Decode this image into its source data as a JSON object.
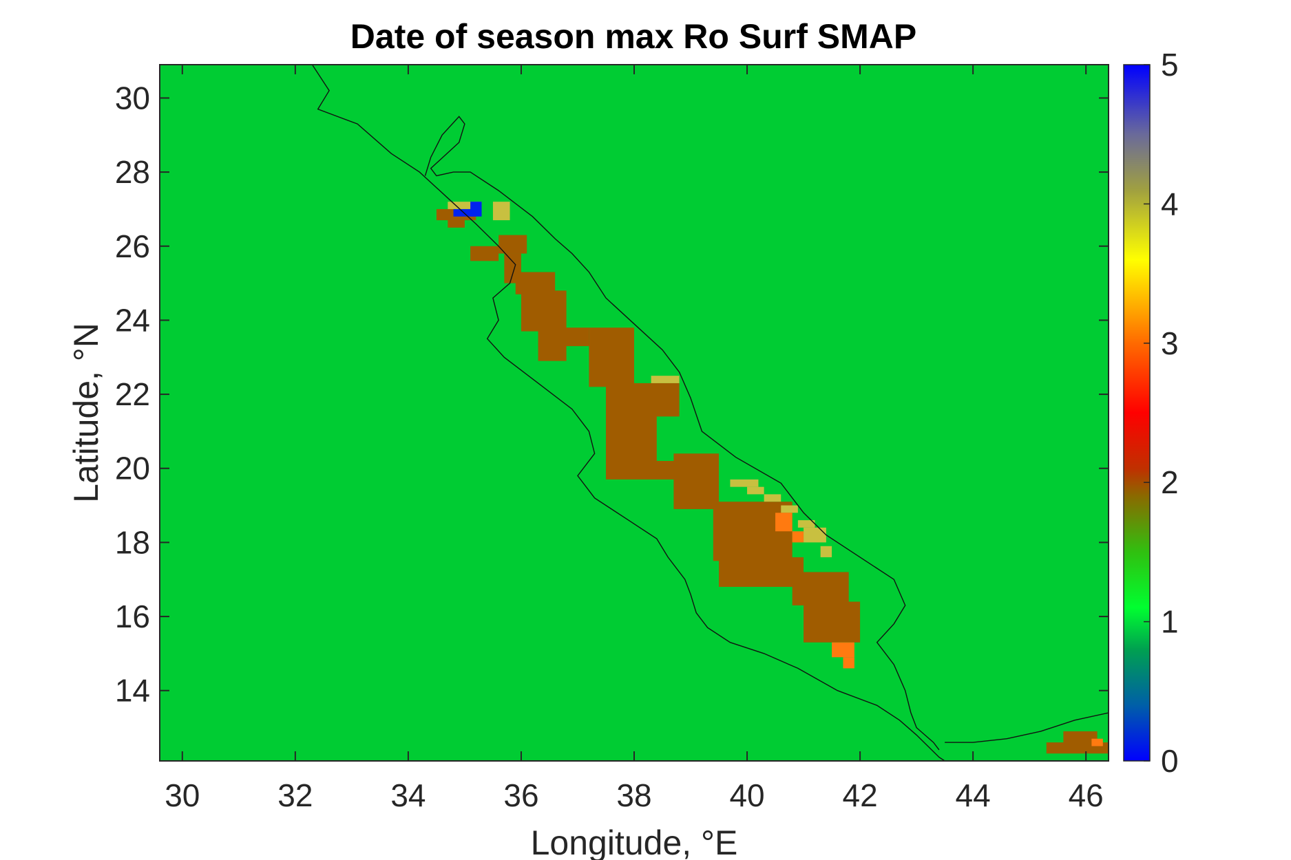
{
  "chart_data": {
    "type": "heatmap",
    "title": "Date of season max Ro Surf SMAP",
    "xlabel": "Longitude, °E",
    "ylabel": "Latitude, °N",
    "xlim": [
      29.6,
      46.4
    ],
    "ylim": [
      12.1,
      30.9
    ],
    "xticks": [
      30,
      32,
      34,
      36,
      38,
      40,
      42,
      44,
      46
    ],
    "xtick_labels": [
      "30",
      "32",
      "34",
      "36",
      "38",
      "40",
      "42",
      "44",
      "46"
    ],
    "yticks": [
      14,
      16,
      18,
      20,
      22,
      24,
      26,
      28,
      30
    ],
    "ytick_labels": [
      "14",
      "16",
      "18",
      "20",
      "22",
      "24",
      "26",
      "28",
      "30"
    ],
    "colorbar": {
      "range": [
        0,
        5
      ],
      "ticks": [
        0,
        1,
        2,
        3,
        4,
        5
      ],
      "tick_labels": [
        "0",
        "1",
        "2",
        "3",
        "4",
        "5"
      ]
    },
    "background_value": 1,
    "cells": [
      {
        "lon": [
          35.6,
          36.1
        ],
        "lat": [
          25.8,
          26.3
        ],
        "value": 2
      },
      {
        "lon": [
          35.1,
          35.6
        ],
        "lat": [
          25.6,
          26.0
        ],
        "value": 2
      },
      {
        "lon": [
          35.7,
          36.0
        ],
        "lat": [
          25.0,
          25.8
        ],
        "value": 2
      },
      {
        "lon": [
          35.9,
          36.6
        ],
        "lat": [
          24.7,
          25.3
        ],
        "value": 2
      },
      {
        "lon": [
          36.0,
          36.8
        ],
        "lat": [
          23.7,
          24.8
        ],
        "value": 2
      },
      {
        "lon": [
          36.3,
          37.2
        ],
        "lat": [
          23.3,
          23.8
        ],
        "value": 2
      },
      {
        "lon": [
          36.3,
          36.8
        ],
        "lat": [
          22.9,
          23.4
        ],
        "value": 2
      },
      {
        "lon": [
          37.2,
          38.0
        ],
        "lat": [
          22.2,
          23.8
        ],
        "value": 2
      },
      {
        "lon": [
          37.5,
          38.4
        ],
        "lat": [
          20.1,
          22.3
        ],
        "value": 2
      },
      {
        "lon": [
          37.5,
          38.9
        ],
        "lat": [
          19.7,
          20.2
        ],
        "value": 2
      },
      {
        "lon": [
          38.3,
          38.8
        ],
        "lat": [
          21.4,
          22.3
        ],
        "value": 2
      },
      {
        "lon": [
          38.7,
          39.5
        ],
        "lat": [
          18.9,
          20.4
        ],
        "value": 2
      },
      {
        "lon": [
          39.4,
          40.8
        ],
        "lat": [
          17.5,
          19.1
        ],
        "value": 2
      },
      {
        "lon": [
          39.5,
          41.0
        ],
        "lat": [
          16.8,
          17.6
        ],
        "value": 2
      },
      {
        "lon": [
          40.8,
          41.8
        ],
        "lat": [
          16.3,
          17.2
        ],
        "value": 2
      },
      {
        "lon": [
          41.0,
          42.0
        ],
        "lat": [
          15.3,
          16.4
        ],
        "value": 2
      },
      {
        "lon": [
          45.3,
          46.4
        ],
        "lat": [
          12.3,
          12.6
        ],
        "value": 2
      },
      {
        "lon": [
          45.6,
          46.2
        ],
        "lat": [
          12.5,
          12.9
        ],
        "value": 2
      },
      {
        "lon": [
          34.5,
          35.2
        ],
        "lat": [
          26.7,
          27.0
        ],
        "value": 2
      },
      {
        "lon": [
          34.7,
          35.0
        ],
        "lat": [
          26.5,
          26.8
        ],
        "value": 2
      },
      {
        "lon": [
          38.3,
          38.8
        ],
        "lat": [
          22.3,
          22.5
        ],
        "value": 3.9
      },
      {
        "lon": [
          39.7,
          40.2
        ],
        "lat": [
          19.5,
          19.7
        ],
        "value": 3.9
      },
      {
        "lon": [
          40.0,
          40.3
        ],
        "lat": [
          19.3,
          19.5
        ],
        "value": 3.9
      },
      {
        "lon": [
          40.3,
          40.6
        ],
        "lat": [
          19.1,
          19.3
        ],
        "value": 3.9
      },
      {
        "lon": [
          40.6,
          40.9
        ],
        "lat": [
          18.8,
          19.0
        ],
        "value": 3.9
      },
      {
        "lon": [
          40.9,
          41.2
        ],
        "lat": [
          18.4,
          18.6
        ],
        "value": 3.9
      },
      {
        "lon": [
          41.0,
          41.4
        ],
        "lat": [
          18.0,
          18.4
        ],
        "value": 3.9
      },
      {
        "lon": [
          41.3,
          41.5
        ],
        "lat": [
          17.6,
          17.9
        ],
        "value": 3.9
      },
      {
        "lon": [
          34.7,
          35.3
        ],
        "lat": [
          27.0,
          27.2
        ],
        "value": 3.9
      },
      {
        "lon": [
          35.5,
          35.8
        ],
        "lat": [
          26.7,
          27.2
        ],
        "value": 3.9
      },
      {
        "lon": [
          40.5,
          40.8
        ],
        "lat": [
          18.3,
          18.8
        ],
        "value": 3
      },
      {
        "lon": [
          40.8,
          41.0
        ],
        "lat": [
          18.0,
          18.3
        ],
        "value": 3
      },
      {
        "lon": [
          41.5,
          41.9
        ],
        "lat": [
          14.9,
          15.3
        ],
        "value": 3
      },
      {
        "lon": [
          41.7,
          41.9
        ],
        "lat": [
          14.6,
          14.9
        ],
        "value": 3
      },
      {
        "lon": [
          46.1,
          46.3
        ],
        "lat": [
          12.5,
          12.7
        ],
        "value": 3
      },
      {
        "lon": [
          34.8,
          35.2
        ],
        "lat": [
          26.8,
          27.0
        ],
        "value": 5
      },
      {
        "lon": [
          35.1,
          35.3
        ],
        "lat": [
          26.8,
          27.2
        ],
        "value": 5
      }
    ],
    "coastlines": [
      {
        "name": "western-shore",
        "points": [
          [
            32.3,
            30.9
          ],
          [
            32.6,
            30.2
          ],
          [
            32.4,
            29.7
          ],
          [
            33.1,
            29.3
          ],
          [
            33.7,
            28.5
          ],
          [
            34.2,
            28.0
          ],
          [
            34.7,
            27.3
          ],
          [
            35.2,
            26.6
          ],
          [
            35.6,
            26.0
          ],
          [
            35.9,
            25.5
          ],
          [
            35.8,
            25.0
          ],
          [
            35.5,
            24.6
          ],
          [
            35.6,
            24.0
          ],
          [
            35.4,
            23.5
          ],
          [
            35.7,
            23.0
          ],
          [
            36.3,
            22.3
          ],
          [
            36.9,
            21.6
          ],
          [
            37.2,
            21.0
          ],
          [
            37.3,
            20.4
          ],
          [
            37.0,
            19.8
          ],
          [
            37.3,
            19.2
          ],
          [
            37.9,
            18.6
          ],
          [
            38.4,
            18.1
          ],
          [
            38.6,
            17.6
          ],
          [
            38.9,
            17.0
          ],
          [
            39.0,
            16.6
          ],
          [
            39.1,
            16.1
          ],
          [
            39.3,
            15.7
          ],
          [
            39.7,
            15.3
          ],
          [
            40.3,
            15.0
          ],
          [
            40.9,
            14.6
          ],
          [
            41.6,
            14.0
          ],
          [
            42.3,
            13.6
          ],
          [
            42.7,
            13.2
          ],
          [
            43.0,
            12.8
          ],
          [
            43.4,
            12.2
          ],
          [
            43.5,
            12.1
          ]
        ]
      },
      {
        "name": "eastern-shore",
        "points": [
          [
            43.4,
            12.4
          ],
          [
            43.3,
            12.6
          ],
          [
            43.0,
            13.0
          ],
          [
            42.9,
            13.4
          ],
          [
            42.8,
            14.0
          ],
          [
            42.6,
            14.7
          ],
          [
            42.3,
            15.3
          ],
          [
            42.6,
            15.8
          ],
          [
            42.8,
            16.3
          ],
          [
            42.6,
            17.0
          ],
          [
            42.0,
            17.6
          ],
          [
            41.4,
            18.2
          ],
          [
            41.0,
            18.8
          ],
          [
            40.6,
            19.6
          ],
          [
            39.8,
            20.3
          ],
          [
            39.2,
            21.0
          ],
          [
            39.0,
            21.9
          ],
          [
            38.8,
            22.6
          ],
          [
            38.5,
            23.2
          ],
          [
            38.0,
            23.9
          ],
          [
            37.5,
            24.6
          ],
          [
            37.2,
            25.3
          ],
          [
            36.9,
            25.8
          ],
          [
            36.6,
            26.2
          ],
          [
            36.2,
            26.8
          ],
          [
            35.6,
            27.5
          ],
          [
            35.1,
            28.0
          ],
          [
            34.8,
            28.0
          ],
          [
            34.5,
            27.9
          ],
          [
            34.4,
            28.1
          ],
          [
            34.9,
            28.8
          ],
          [
            35.0,
            29.3
          ],
          [
            34.9,
            29.5
          ],
          [
            34.6,
            29.0
          ],
          [
            34.4,
            28.4
          ],
          [
            34.3,
            27.9
          ]
        ]
      },
      {
        "name": "gulf-of-aden-shore",
        "points": [
          [
            43.5,
            12.6
          ],
          [
            44.0,
            12.6
          ],
          [
            44.6,
            12.7
          ],
          [
            45.2,
            12.9
          ],
          [
            45.8,
            13.2
          ],
          [
            46.4,
            13.4
          ]
        ]
      }
    ]
  }
}
